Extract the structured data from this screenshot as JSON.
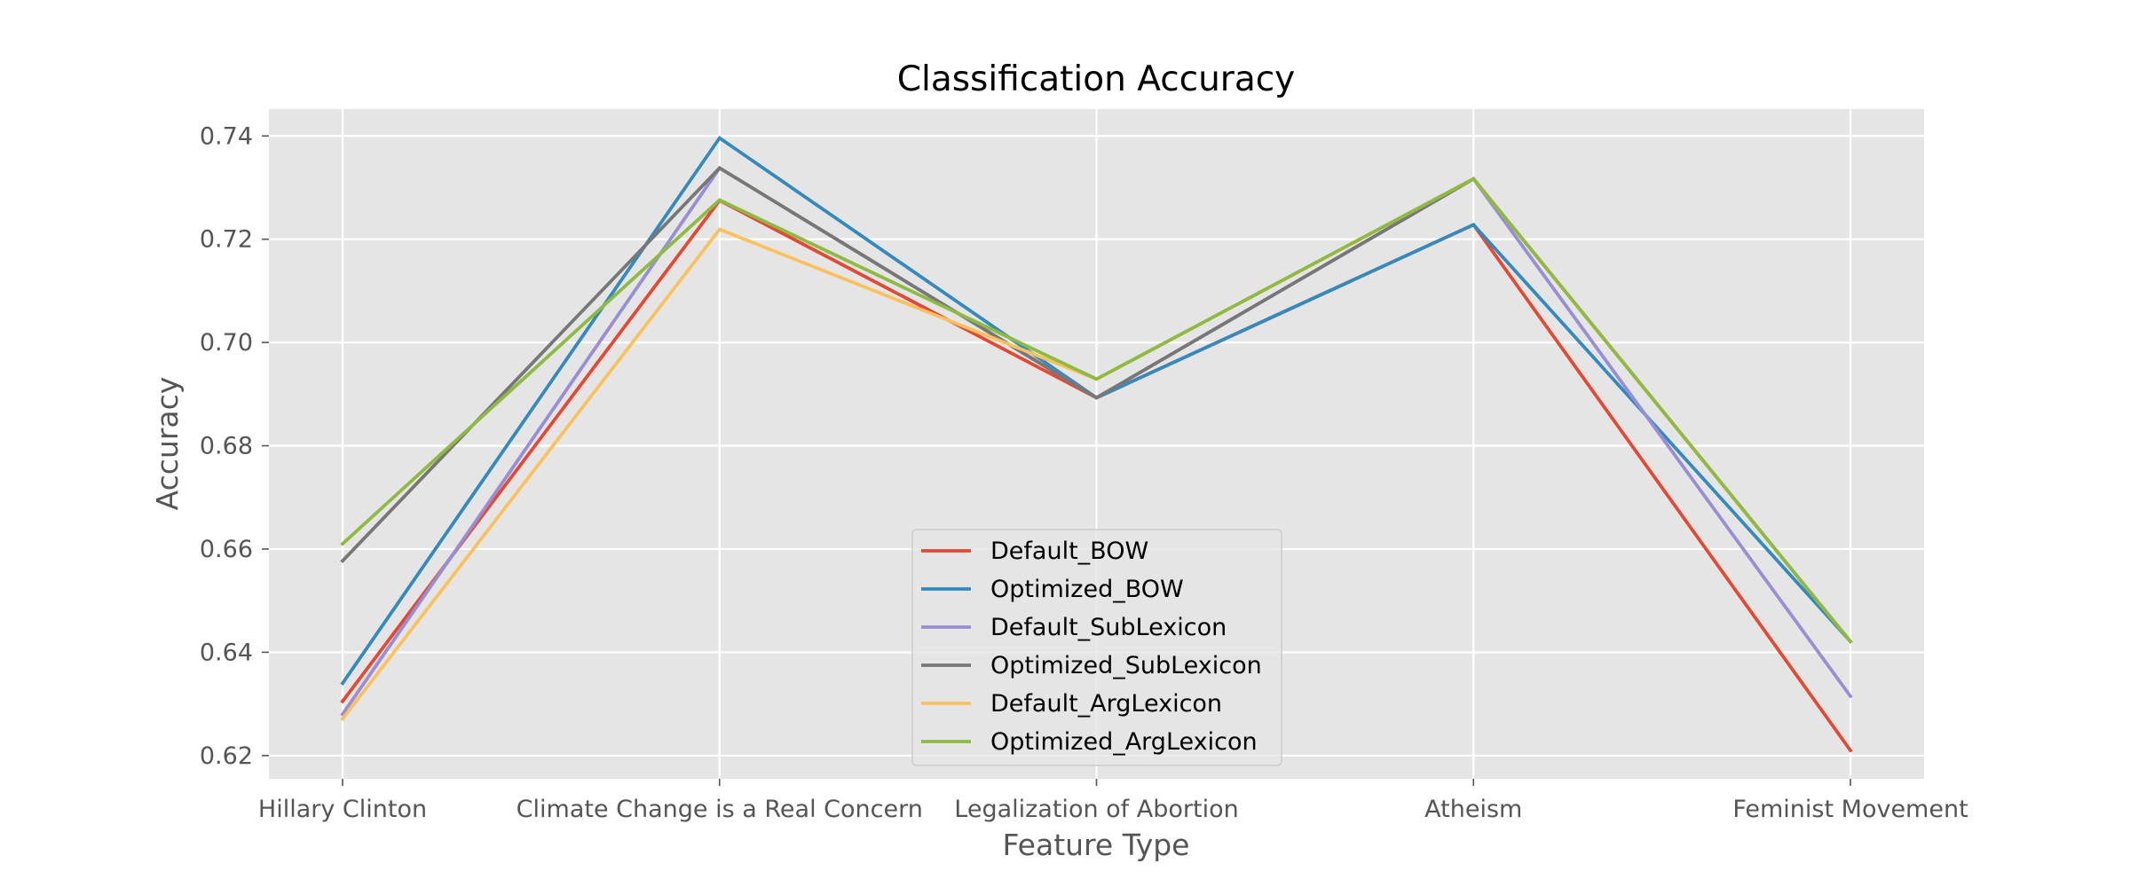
{
  "chart_data": {
    "type": "line",
    "title": "Classification Accuracy",
    "xlabel": "Feature Type",
    "ylabel": "Accuracy",
    "categories": [
      "Hillary Clinton",
      "Climate Change is a Real Concern",
      "Legalization of Abortion",
      "Atheism",
      "Feminist Movement"
    ],
    "ylim": [
      0.6155,
      0.7452
    ],
    "yticks": [
      0.62,
      0.64,
      0.66,
      0.68,
      0.7,
      0.72,
      0.74
    ],
    "ytick_labels": [
      "0.62",
      "0.64",
      "0.66",
      "0.68",
      "0.70",
      "0.72",
      "0.74"
    ],
    "grid": true,
    "legend_position": "bottom-center",
    "series": [
      {
        "name": "Default_BOW",
        "color": "#E24A33",
        "values": [
          0.6305,
          0.7275,
          0.6893,
          0.7228,
          0.621
        ]
      },
      {
        "name": "Optimized_BOW",
        "color": "#348ABD",
        "values": [
          0.634,
          0.7396,
          0.6893,
          0.7228,
          0.6421
        ]
      },
      {
        "name": "Default_SubLexicon",
        "color": "#988ED5",
        "values": [
          0.628,
          0.7338,
          0.6893,
          0.7317,
          0.6315
        ]
      },
      {
        "name": "Optimized_SubLexicon",
        "color": "#777777",
        "values": [
          0.6577,
          0.7338,
          0.6893,
          0.7317,
          0.6421
        ]
      },
      {
        "name": "Default_ArgLexicon",
        "color": "#FBC15E",
        "values": [
          0.6271,
          0.7219,
          0.6929,
          0.7317,
          0.6421
        ]
      },
      {
        "name": "Optimized_ArgLexicon",
        "color": "#8EBA42",
        "values": [
          0.661,
          0.7276,
          0.6929,
          0.7317,
          0.6421
        ]
      }
    ]
  }
}
